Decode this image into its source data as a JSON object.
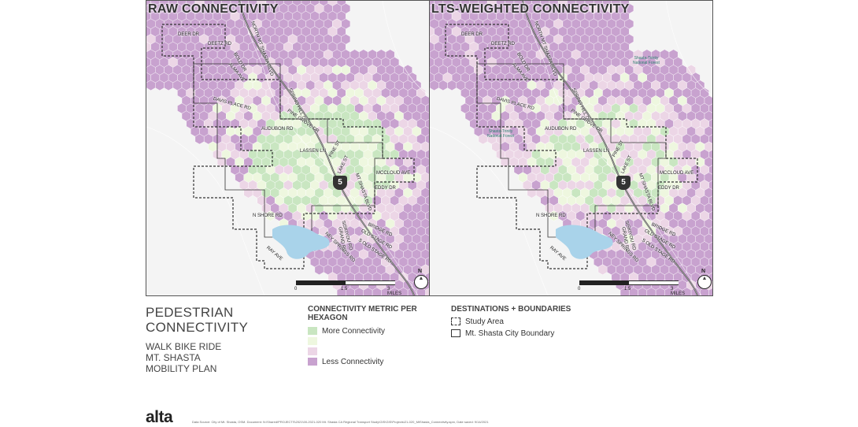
{
  "maps": [
    {
      "title": "RAW CONNECTIVITY",
      "forest_labels": [],
      "streets": [
        "DEER DR",
        "DEETZ RD",
        "BOLD DR",
        "NORTH MT SHASTA BLVD",
        "ALMA AVE",
        "DAVIS PLACE RD",
        "SPRING HILL DR",
        "AUDUBON RD",
        "PINE GROVE DR",
        "LASSEN LN",
        "PINE ST",
        "LAKE ST",
        "MCCLOUD AVE",
        "EDDY DR",
        "MT SHASTA BLVD",
        "N SHORE RD",
        "OLD STAGE RD",
        "RAY AVE",
        "NEY SPRINGS RD",
        "SISKIYOU RD",
        "S OLD STAGE RD",
        "BRIDGE RD",
        "GRAND RD"
      ]
    },
    {
      "title": "LTS-WEIGHTED CONNECTIVITY",
      "forest_labels": [
        "Shasta-Trinity National Forest",
        "Shasta-Trinity National Forest"
      ],
      "streets": [
        "DEER DR",
        "DEETZ RD",
        "BOLD DR",
        "NORTH MT SHASTA BLVD",
        "ALMA AVE",
        "DAVIS PLACE RD",
        "SPRING HILL DR",
        "AUDUBON RD",
        "PINE GROVE DR",
        "LASSEN LN",
        "PINE ST",
        "LAKE ST",
        "MCCLOUD AVE",
        "EDDY DR",
        "MT SHASTA BLVD",
        "N SHORE RD",
        "OLD STAGE RD",
        "RAY AVE",
        "NEY SPRINGS RD",
        "SISKIYOU RD",
        "S OLD STAGE RD",
        "BRIDGE RD",
        "GRAND RD"
      ]
    }
  ],
  "highway_shield": "5",
  "scale": {
    "labels": [
      "0",
      "1.5",
      "3 MILES"
    ]
  },
  "north_label": "N",
  "title": {
    "line1": "PEDESTRIAN",
    "line2": "CONNECTIVITY",
    "sub1": "WALK BIKE RIDE",
    "sub2": "MT. SHASTA",
    "sub3": "MOBILITY PLAN"
  },
  "legend": {
    "heading": "CONNECTIVITY METRIC PER HEXAGON",
    "items": [
      {
        "label": "More Connectivity",
        "color": "#c9e6c1"
      },
      {
        "label": "",
        "color": "#eef7df"
      },
      {
        "label": "",
        "color": "#ecd6e6"
      },
      {
        "label": "Less Connectivity",
        "color": "#c8a2cf"
      }
    ]
  },
  "destinations": {
    "heading": "DESTINATIONS + BOUNDARIES",
    "items": [
      {
        "label": "Study Area",
        "style": "dashed"
      },
      {
        "label": "Mt. Shasta City Boundary",
        "style": "solid"
      }
    ]
  },
  "logo": "alta",
  "source": "Data Source: City of Mt. Shasta, OSM. Document: N:\\Shared\\PROJECTS\\2021\\00-2021-020 Mt. Shasta CA Regional Transport Study\\GIS\\GIS\\Projects\\21-020_MtShasta_Connectivity.aprx, Date saved: 9/14/2021",
  "colors": {
    "more": "#c9e6c1",
    "mid_green": "#eef7df",
    "mid_pink": "#ecd6e6",
    "less": "#c8a2cf",
    "water": "#a9d3ea",
    "background": "#f3f3f3"
  }
}
